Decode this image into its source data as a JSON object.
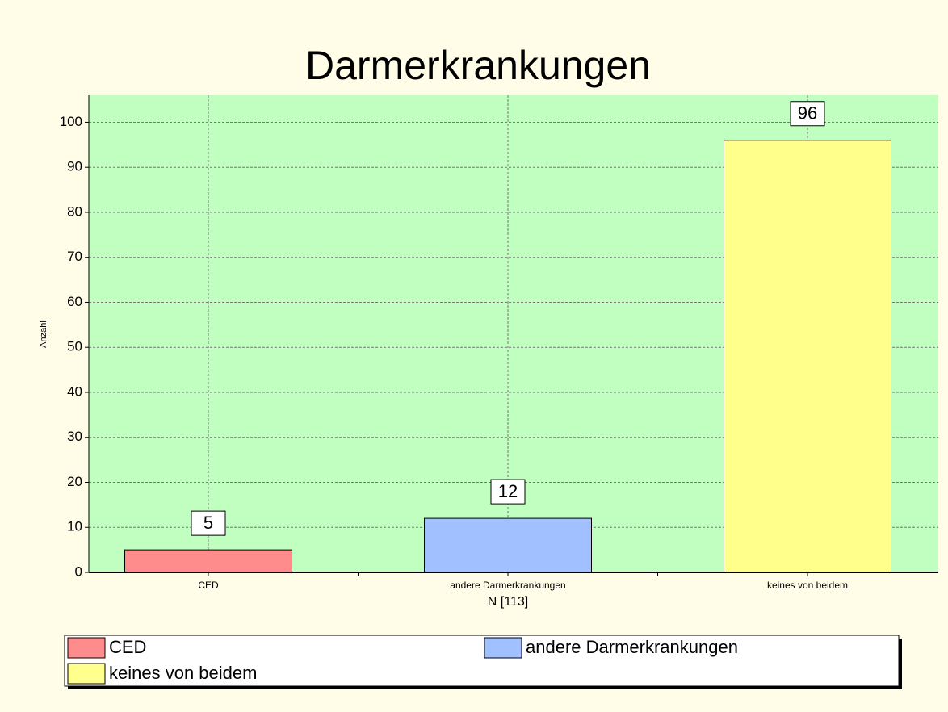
{
  "chart_data": {
    "type": "bar",
    "title": "Darmerkrankungen",
    "categories": [
      "CED",
      "andere Darmerkrankungen",
      "keines von beidem"
    ],
    "values": [
      5,
      12,
      96
    ],
    "colors": [
      "#ff8c8c",
      "#a0c0ff",
      "#ffff8c"
    ],
    "x_label": "N [113]",
    "y_label": "Anzahl",
    "ylim": [
      0,
      106
    ],
    "yticks": [
      0,
      10,
      20,
      30,
      40,
      50,
      60,
      70,
      80,
      90,
      100
    ],
    "grid": true
  }
}
